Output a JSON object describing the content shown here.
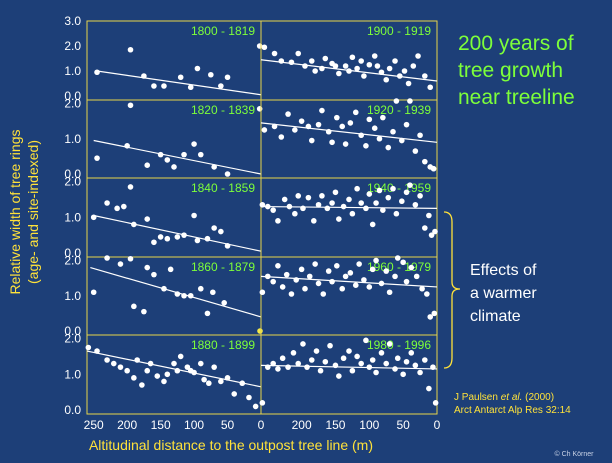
{
  "slide": {
    "title_lines": [
      "200 years of",
      "tree growth",
      "near treeline"
    ],
    "effects_lines": [
      "Effects of",
      "a warmer",
      "climate"
    ],
    "citation_line1": {
      "author": "J Paulsen ",
      "etal": "et al.",
      "year": " (2000)"
    },
    "citation_line2": "Arct Antarct Alp Res  32:14",
    "copyright": "© Ch Körner"
  },
  "chart_data": {
    "type": "scatter",
    "xlabel": "Altitudinal distance to the outpost tree line (m)",
    "ylabel_lines": [
      "Relative width of tree rings",
      "(age- and site-indexed)"
    ],
    "x_ticks": [
      "250",
      "200",
      "150",
      "100",
      "50",
      "0",
      "200",
      "150",
      "100",
      "50",
      "0"
    ],
    "xlim": [
      0,
      260
    ],
    "x_reversed": true,
    "ylim": [
      0,
      2.1
    ],
    "y_ticks_top": [
      "3.0",
      "2.0",
      "1.0",
      "0.0"
    ],
    "y_ticks": [
      "2.0",
      "1.0",
      "0.0"
    ],
    "colors": {
      "points": "#ffffff",
      "trend": "#ffffff",
      "frame": "#e8d44a",
      "labels": "#7dff3a",
      "highlight": "#f2e84a"
    },
    "panels": [
      {
        "label": "1800 - 1819",
        "row": 0,
        "col": 0,
        "trend": [
          [
            245,
            1.0
          ],
          [
            0,
            0.05
          ]
        ],
        "points": [
          [
            245,
            0.95
          ],
          [
            195,
            1.85
          ],
          [
            175,
            0.8
          ],
          [
            160,
            0.4
          ],
          [
            145,
            0.4
          ],
          [
            120,
            0.75
          ],
          [
            105,
            0.35
          ],
          [
            95,
            1.1
          ],
          [
            75,
            0.85
          ],
          [
            60,
            0.4
          ],
          [
            50,
            0.75
          ],
          [
            2,
            2.0
          ]
        ]
      },
      {
        "label": "1900 - 1919",
        "row": 0,
        "col": 1,
        "trend": [
          [
            260,
            1.45
          ],
          [
            0,
            0.6
          ]
        ],
        "points": [
          [
            255,
            1.95
          ],
          [
            240,
            1.7
          ],
          [
            230,
            1.4
          ],
          [
            215,
            1.35
          ],
          [
            205,
            1.7
          ],
          [
            195,
            1.2
          ],
          [
            185,
            1.4
          ],
          [
            180,
            1.0
          ],
          [
            170,
            1.1
          ],
          [
            165,
            1.5
          ],
          [
            155,
            1.3
          ],
          [
            150,
            1.2
          ],
          [
            145,
            0.9
          ],
          [
            135,
            1.2
          ],
          [
            130,
            1.0
          ],
          [
            125,
            1.55
          ],
          [
            118,
            1.1
          ],
          [
            112,
            1.4
          ],
          [
            108,
            0.8
          ],
          [
            100,
            1.25
          ],
          [
            92,
            1.6
          ],
          [
            88,
            1.2
          ],
          [
            82,
            0.95
          ],
          [
            75,
            0.65
          ],
          [
            70,
            1.1
          ],
          [
            62,
            1.4
          ],
          [
            55,
            0.8
          ],
          [
            48,
            1.0
          ],
          [
            42,
            0.5
          ],
          [
            35,
            1.2
          ],
          [
            28,
            1.6
          ],
          [
            18,
            0.8
          ],
          [
            10,
            0.35
          ]
        ]
      },
      {
        "label": "1820 - 1839",
        "row": 1,
        "col": 0,
        "trend": [
          [
            250,
            0.95
          ],
          [
            0,
            0.0
          ]
        ],
        "points": [
          [
            245,
            0.45
          ],
          [
            200,
            0.8
          ],
          [
            195,
            1.95
          ],
          [
            170,
            0.25
          ],
          [
            150,
            0.55
          ],
          [
            140,
            0.4
          ],
          [
            130,
            0.2
          ],
          [
            115,
            0.55
          ],
          [
            100,
            0.85
          ],
          [
            90,
            0.55
          ],
          [
            70,
            0.2
          ],
          [
            50,
            0.0
          ],
          [
            2,
            1.85
          ]
        ]
      },
      {
        "label": "1920 - 1939",
        "row": 1,
        "col": 1,
        "trend": [
          [
            260,
            1.45
          ],
          [
            0,
            0.9
          ]
        ],
        "points": [
          [
            255,
            1.25
          ],
          [
            240,
            1.35
          ],
          [
            230,
            1.05
          ],
          [
            220,
            1.7
          ],
          [
            210,
            1.25
          ],
          [
            200,
            1.5
          ],
          [
            190,
            1.35
          ],
          [
            185,
            0.95
          ],
          [
            175,
            1.4
          ],
          [
            170,
            1.8
          ],
          [
            160,
            1.2
          ],
          [
            155,
            0.9
          ],
          [
            148,
            1.6
          ],
          [
            140,
            1.35
          ],
          [
            135,
            0.85
          ],
          [
            128,
            1.45
          ],
          [
            120,
            1.75
          ],
          [
            112,
            1.1
          ],
          [
            105,
            0.8
          ],
          [
            100,
            1.55
          ],
          [
            92,
            1.3
          ],
          [
            85,
            1.0
          ],
          [
            80,
            1.6
          ],
          [
            72,
            0.75
          ],
          [
            65,
            1.2
          ],
          [
            60,
            2.35
          ],
          [
            52,
            0.95
          ],
          [
            45,
            1.4
          ],
          [
            40,
            2.4
          ],
          [
            32,
            0.65
          ],
          [
            25,
            1.1
          ],
          [
            18,
            0.35
          ],
          [
            10,
            0.2
          ],
          [
            5,
            0.15
          ]
        ]
      },
      {
        "label": "1840 - 1859",
        "row": 2,
        "col": 0,
        "trend": [
          [
            250,
            1.05
          ],
          [
            0,
            0.05
          ]
        ],
        "points": [
          [
            250,
            1.0
          ],
          [
            230,
            1.4
          ],
          [
            215,
            1.25
          ],
          [
            205,
            1.3
          ],
          [
            195,
            1.85
          ],
          [
            190,
            0.8
          ],
          [
            170,
            0.95
          ],
          [
            160,
            0.3
          ],
          [
            150,
            0.45
          ],
          [
            140,
            0.4
          ],
          [
            125,
            0.45
          ],
          [
            115,
            0.5
          ],
          [
            100,
            1.05
          ],
          [
            95,
            0.35
          ],
          [
            80,
            0.4
          ],
          [
            70,
            0.7
          ],
          [
            60,
            0.6
          ],
          [
            50,
            0.2
          ]
        ]
      },
      {
        "label": "1940 - 1959",
        "row": 2,
        "col": 1,
        "trend": [
          [
            260,
            1.3
          ],
          [
            0,
            1.25
          ]
        ],
        "points": [
          [
            258,
            1.35
          ],
          [
            250,
            1.3
          ],
          [
            242,
            1.2
          ],
          [
            235,
            0.9
          ],
          [
            225,
            1.5
          ],
          [
            218,
            1.3
          ],
          [
            210,
            1.1
          ],
          [
            205,
            1.6
          ],
          [
            198,
            1.25
          ],
          [
            190,
            1.55
          ],
          [
            182,
            0.9
          ],
          [
            175,
            1.35
          ],
          [
            170,
            1.6
          ],
          [
            162,
            1.25
          ],
          [
            155,
            1.4
          ],
          [
            150,
            1.7
          ],
          [
            145,
            0.95
          ],
          [
            138,
            1.3
          ],
          [
            130,
            1.5
          ],
          [
            125,
            1.1
          ],
          [
            118,
            1.8
          ],
          [
            112,
            1.4
          ],
          [
            105,
            1.25
          ],
          [
            100,
            1.65
          ],
          [
            95,
            0.8
          ],
          [
            90,
            1.4
          ],
          [
            85,
            1.75
          ],
          [
            80,
            1.2
          ],
          [
            72,
            1.55
          ],
          [
            65,
            1.8
          ],
          [
            60,
            1.1
          ],
          [
            52,
            1.45
          ],
          [
            45,
            1.7
          ],
          [
            40,
            1.9
          ],
          [
            32,
            1.35
          ],
          [
            25,
            1.6
          ],
          [
            18,
            0.7
          ],
          [
            12,
            1.05
          ],
          [
            8,
            0.5
          ],
          [
            3,
            0.6
          ]
        ]
      },
      {
        "label": "1860 - 1879",
        "row": 3,
        "col": 0,
        "trend": [
          [
            255,
            1.8
          ],
          [
            0,
            0.4
          ]
        ],
        "points": [
          [
            250,
            1.1
          ],
          [
            230,
            2.1
          ],
          [
            210,
            1.9
          ],
          [
            195,
            2.05
          ],
          [
            190,
            0.7
          ],
          [
            175,
            0.55
          ],
          [
            170,
            1.8
          ],
          [
            160,
            1.6
          ],
          [
            145,
            1.2
          ],
          [
            135,
            1.75
          ],
          [
            125,
            1.05
          ],
          [
            115,
            1.0
          ],
          [
            105,
            1.0
          ],
          [
            90,
            1.2
          ],
          [
            80,
            0.5
          ],
          [
            72,
            1.1
          ],
          [
            55,
            0.8
          ],
          [
            1,
            0.0
          ]
        ]
      },
      {
        "label": "1960 - 1979",
        "row": 3,
        "col": 1,
        "trend": [
          [
            260,
            1.55
          ],
          [
            0,
            1.25
          ]
        ],
        "points": [
          [
            258,
            1.1
          ],
          [
            250,
            1.55
          ],
          [
            242,
            1.4
          ],
          [
            235,
            1.85
          ],
          [
            228,
            1.25
          ],
          [
            222,
            1.6
          ],
          [
            215,
            1.05
          ],
          [
            208,
            1.45
          ],
          [
            200,
            1.75
          ],
          [
            195,
            1.2
          ],
          [
            188,
            1.55
          ],
          [
            180,
            1.9
          ],
          [
            175,
            1.35
          ],
          [
            168,
            1.05
          ],
          [
            160,
            1.7
          ],
          [
            155,
            1.4
          ],
          [
            148,
            1.85
          ],
          [
            140,
            1.2
          ],
          [
            135,
            1.55
          ],
          [
            128,
            1.65
          ],
          [
            120,
            1.3
          ],
          [
            115,
            1.9
          ],
          [
            108,
            1.45
          ],
          [
            100,
            1.25
          ],
          [
            95,
            1.75
          ],
          [
            90,
            2.0
          ],
          [
            82,
            1.35
          ],
          [
            75,
            1.7
          ],
          [
            70,
            1.1
          ],
          [
            62,
            1.55
          ],
          [
            58,
            2.3
          ],
          [
            50,
            1.95
          ],
          [
            45,
            1.4
          ],
          [
            38,
            1.8
          ],
          [
            30,
            1.55
          ],
          [
            22,
            1.2
          ],
          [
            15,
            1.05
          ],
          [
            10,
            0.4
          ],
          [
            4,
            0.5
          ]
        ]
      },
      {
        "label": "1880 - 1899",
        "row": 4,
        "col": 0,
        "trend": [
          [
            260,
            1.65
          ],
          [
            0,
            0.65
          ]
        ],
        "points": [
          [
            258,
            1.75
          ],
          [
            245,
            1.65
          ],
          [
            230,
            1.4
          ],
          [
            220,
            1.3
          ],
          [
            210,
            1.2
          ],
          [
            200,
            1.1
          ],
          [
            190,
            0.9
          ],
          [
            185,
            1.4
          ],
          [
            178,
            0.7
          ],
          [
            170,
            1.1
          ],
          [
            165,
            1.3
          ],
          [
            155,
            0.95
          ],
          [
            145,
            0.8
          ],
          [
            140,
            1.0
          ],
          [
            130,
            1.3
          ],
          [
            125,
            1.1
          ],
          [
            120,
            1.5
          ],
          [
            110,
            1.2
          ],
          [
            105,
            1.1
          ],
          [
            100,
            1.05
          ],
          [
            90,
            1.3
          ],
          [
            85,
            0.85
          ],
          [
            78,
            0.75
          ],
          [
            70,
            1.2
          ],
          [
            60,
            0.8
          ],
          [
            50,
            0.9
          ],
          [
            40,
            0.45
          ],
          [
            28,
            0.75
          ],
          [
            18,
            0.35
          ],
          [
            8,
            0.1
          ]
        ]
      },
      {
        "label": "1980 - 1996",
        "row": 4,
        "col": 1,
        "trend": [
          [
            260,
            1.25
          ],
          [
            0,
            1.15
          ]
        ],
        "points": [
          [
            258,
            0.2
          ],
          [
            250,
            1.2
          ],
          [
            242,
            1.3
          ],
          [
            235,
            1.15
          ],
          [
            228,
            1.45
          ],
          [
            220,
            1.2
          ],
          [
            212,
            1.6
          ],
          [
            205,
            1.3
          ],
          [
            198,
            1.85
          ],
          [
            192,
            1.2
          ],
          [
            185,
            1.4
          ],
          [
            178,
            1.65
          ],
          [
            172,
            1.1
          ],
          [
            165,
            1.35
          ],
          [
            158,
            1.8
          ],
          [
            150,
            1.25
          ],
          [
            145,
            0.95
          ],
          [
            138,
            1.45
          ],
          [
            130,
            1.65
          ],
          [
            125,
            1.1
          ],
          [
            118,
            1.5
          ],
          [
            112,
            1.3
          ],
          [
            105,
            1.95
          ],
          [
            100,
            1.2
          ],
          [
            95,
            1.4
          ],
          [
            90,
            1.05
          ],
          [
            82,
            1.6
          ],
          [
            75,
            1.3
          ],
          [
            70,
            1.85
          ],
          [
            62,
            1.15
          ],
          [
            58,
            1.45
          ],
          [
            50,
            1.0
          ],
          [
            45,
            1.35
          ],
          [
            38,
            1.6
          ],
          [
            32,
            1.25
          ],
          [
            25,
            1.05
          ],
          [
            18,
            1.4
          ],
          [
            12,
            0.6
          ],
          [
            6,
            1.2
          ],
          [
            2,
            0.2
          ]
        ]
      }
    ]
  }
}
